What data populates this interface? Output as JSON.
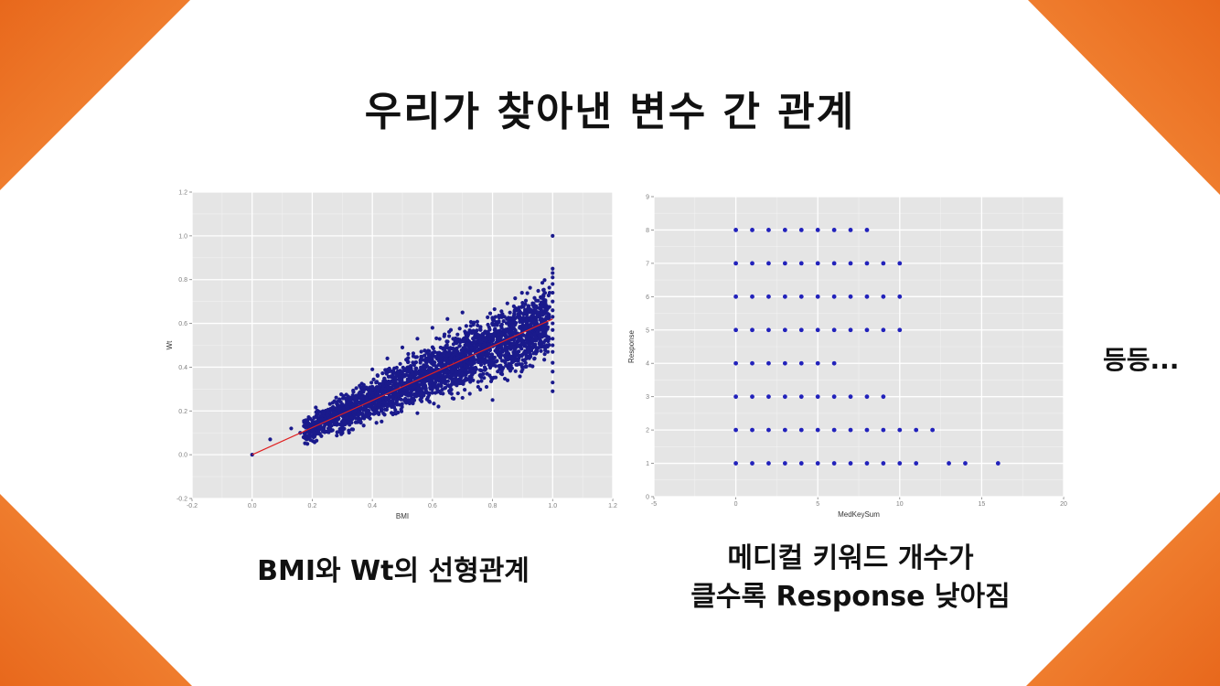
{
  "slide": {
    "title": "우리가 찾아낸 변수 간 관계",
    "caption_left": "BMI와 Wt의 선형관계",
    "caption_right_line1": "메디컬 키워드 개수가",
    "caption_right_line2": "클수록 Response 낮아짐",
    "side_note": "등등...",
    "accent_color": "#f07a2a"
  },
  "chart_data": [
    {
      "type": "scatter",
      "xlabel": "BMI",
      "ylabel": "Wt",
      "xlim": [
        -0.2,
        1.2
      ],
      "ylim": [
        -0.2,
        1.2
      ],
      "xticks": [
        "-0.2",
        "0.0",
        "0.2",
        "0.4",
        "0.6",
        "0.8",
        "1.0",
        "1.2"
      ],
      "yticks": [
        "-0.2",
        "0.0",
        "0.2",
        "0.4",
        "0.6",
        "0.8",
        "1.0",
        "1.2"
      ],
      "point_color": "#1a1a8c",
      "trend_line": {
        "color": "#e02020",
        "from": [
          0.0,
          0.0
        ],
        "to": [
          1.0,
          0.62
        ]
      },
      "points": [
        [
          0.0,
          0.0
        ],
        [
          0.06,
          0.07
        ],
        [
          0.13,
          0.12
        ],
        [
          0.16,
          0.1
        ],
        [
          0.18,
          0.08
        ],
        [
          0.18,
          0.14
        ],
        [
          0.2,
          0.12
        ],
        [
          0.22,
          0.16
        ],
        [
          0.24,
          0.11
        ],
        [
          0.25,
          0.18
        ],
        [
          0.27,
          0.15
        ],
        [
          0.28,
          0.21
        ],
        [
          0.3,
          0.13
        ],
        [
          0.3,
          0.2
        ],
        [
          0.32,
          0.24
        ],
        [
          0.33,
          0.17
        ],
        [
          0.35,
          0.22
        ],
        [
          0.36,
          0.28
        ],
        [
          0.38,
          0.19
        ],
        [
          0.38,
          0.26
        ],
        [
          0.4,
          0.31
        ],
        [
          0.41,
          0.23
        ],
        [
          0.42,
          0.27
        ],
        [
          0.44,
          0.34
        ],
        [
          0.45,
          0.22
        ],
        [
          0.46,
          0.3
        ],
        [
          0.48,
          0.36
        ],
        [
          0.49,
          0.26
        ],
        [
          0.5,
          0.33
        ],
        [
          0.52,
          0.4
        ],
        [
          0.53,
          0.29
        ],
        [
          0.54,
          0.35
        ],
        [
          0.56,
          0.43
        ],
        [
          0.57,
          0.31
        ],
        [
          0.58,
          0.38
        ],
        [
          0.6,
          0.46
        ],
        [
          0.61,
          0.33
        ],
        [
          0.62,
          0.41
        ],
        [
          0.64,
          0.48
        ],
        [
          0.65,
          0.36
        ],
        [
          0.66,
          0.44
        ],
        [
          0.68,
          0.51
        ],
        [
          0.7,
          0.39
        ],
        [
          0.71,
          0.47
        ],
        [
          0.72,
          0.55
        ],
        [
          0.74,
          0.42
        ],
        [
          0.75,
          0.5
        ],
        [
          0.76,
          0.57
        ],
        [
          0.78,
          0.45
        ],
        [
          0.79,
          0.53
        ],
        [
          0.8,
          0.6
        ],
        [
          0.82,
          0.47
        ],
        [
          0.83,
          0.55
        ],
        [
          0.84,
          0.63
        ],
        [
          0.86,
          0.5
        ],
        [
          0.87,
          0.58
        ],
        [
          0.88,
          0.66
        ],
        [
          0.9,
          0.52
        ],
        [
          0.91,
          0.61
        ],
        [
          0.92,
          0.68
        ],
        [
          0.94,
          0.55
        ],
        [
          0.95,
          0.63
        ],
        [
          0.96,
          0.72
        ],
        [
          0.97,
          0.58
        ],
        [
          0.98,
          0.66
        ],
        [
          0.99,
          0.74
        ],
        [
          1.0,
          0.29
        ],
        [
          1.0,
          0.33
        ],
        [
          1.0,
          0.38
        ],
        [
          1.0,
          0.42
        ],
        [
          1.0,
          0.47
        ],
        [
          1.0,
          0.5
        ],
        [
          1.0,
          0.53
        ],
        [
          1.0,
          0.57
        ],
        [
          1.0,
          0.6
        ],
        [
          1.0,
          0.63
        ],
        [
          1.0,
          0.66
        ],
        [
          1.0,
          0.7
        ],
        [
          1.0,
          0.74
        ],
        [
          1.0,
          0.78
        ],
        [
          1.0,
          0.81
        ],
        [
          1.0,
          0.83
        ],
        [
          1.0,
          0.85
        ],
        [
          1.0,
          1.0
        ],
        [
          0.55,
          0.53
        ],
        [
          0.6,
          0.58
        ],
        [
          0.65,
          0.62
        ],
        [
          0.7,
          0.65
        ],
        [
          0.5,
          0.49
        ],
        [
          0.45,
          0.44
        ],
        [
          0.4,
          0.39
        ],
        [
          0.62,
          0.22
        ],
        [
          0.7,
          0.26
        ],
        [
          0.78,
          0.31
        ],
        [
          0.85,
          0.34
        ],
        [
          0.55,
          0.19
        ],
        [
          0.9,
          0.39
        ],
        [
          0.94,
          0.44
        ],
        [
          0.8,
          0.25
        ]
      ]
    },
    {
      "type": "scatter",
      "xlabel": "MedKeySum",
      "ylabel": "Response",
      "xlim": [
        -5,
        20
      ],
      "ylim": [
        0,
        9
      ],
      "xticks": [
        "-5",
        "0",
        "5",
        "10",
        "15",
        "20"
      ],
      "yticks": [
        "0",
        "1",
        "2",
        "3",
        "4",
        "5",
        "6",
        "7",
        "8",
        "9"
      ],
      "point_color": "#2222bb",
      "rows": [
        {
          "y": 1,
          "x": [
            0,
            1,
            2,
            3,
            4,
            5,
            6,
            7,
            8,
            9,
            10,
            11,
            13,
            14,
            16
          ]
        },
        {
          "y": 2,
          "x": [
            0,
            1,
            2,
            3,
            4,
            5,
            6,
            7,
            8,
            9,
            10,
            11,
            12
          ]
        },
        {
          "y": 3,
          "x": [
            0,
            1,
            2,
            3,
            4,
            5,
            6,
            7,
            8,
            9
          ]
        },
        {
          "y": 4,
          "x": [
            0,
            1,
            2,
            3,
            4,
            5,
            6
          ]
        },
        {
          "y": 5,
          "x": [
            0,
            1,
            2,
            3,
            4,
            5,
            6,
            7,
            8,
            9,
            10
          ]
        },
        {
          "y": 6,
          "x": [
            0,
            1,
            2,
            3,
            4,
            5,
            6,
            7,
            8,
            9,
            10
          ]
        },
        {
          "y": 7,
          "x": [
            0,
            1,
            2,
            3,
            4,
            5,
            6,
            7,
            8,
            9,
            10
          ]
        },
        {
          "y": 8,
          "x": [
            0,
            1,
            2,
            3,
            4,
            5,
            6,
            7,
            8
          ]
        }
      ]
    }
  ]
}
